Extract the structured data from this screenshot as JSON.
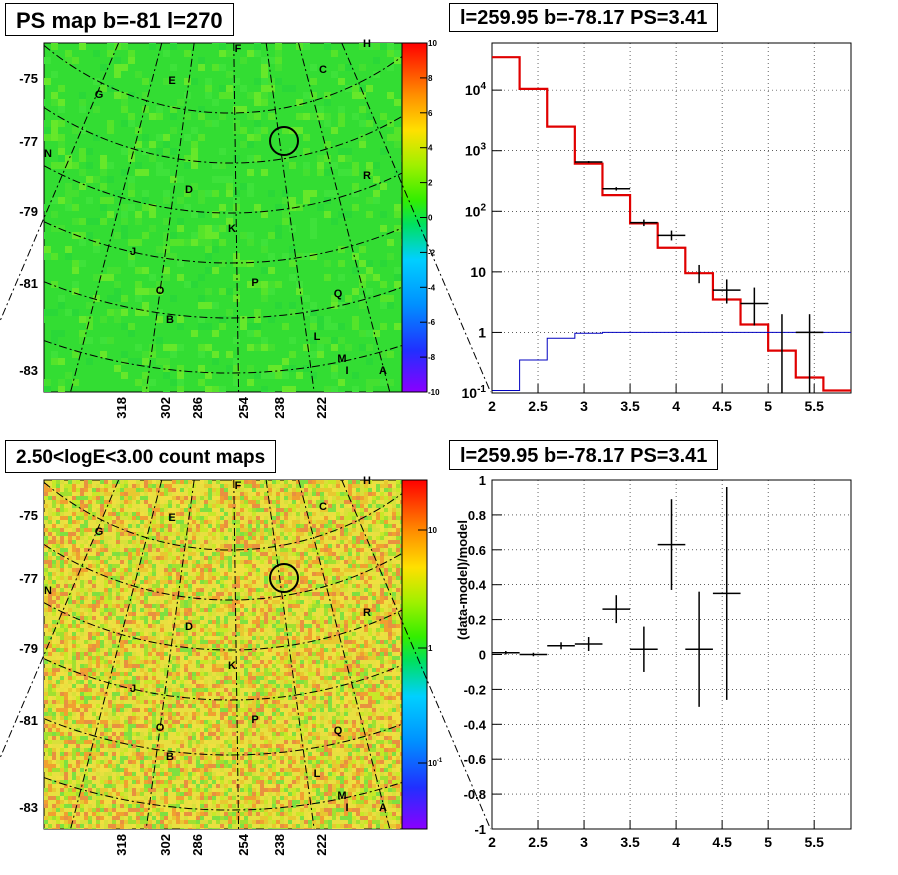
{
  "titles": {
    "ps_map": "PS map b=-81 l=270",
    "spectrum": "l=259.95 b=-78.17 PS=3.41",
    "count_map": "2.50<logE<3.00 count maps",
    "residual": "l=259.95 b=-78.17 PS=3.41"
  },
  "chart_data": [
    {
      "type": "heatmap",
      "title": "PS map b=-81 l=270",
      "y_ticks": [
        "-75",
        "-77",
        "-79",
        "-81",
        "-83"
      ],
      "x_ticks": [
        "318",
        "302",
        "286",
        "254",
        "238",
        "222"
      ],
      "colorbar": {
        "min": -10,
        "max": 10,
        "ticks": [
          "10",
          "8",
          "6",
          "4",
          "2",
          "0",
          "-2",
          "-4",
          "-6",
          "-8",
          "-10"
        ]
      },
      "region_labels": [
        "F",
        "H",
        "C",
        "G",
        "E",
        "N",
        "R",
        "D",
        "K",
        "J",
        "P",
        "O",
        "Q",
        "B",
        "L",
        "M",
        "I",
        "A"
      ],
      "grid": true
    },
    {
      "type": "line",
      "title": "l=259.95 b=-78.17 PS=3.41",
      "xlim": [
        2,
        5.9
      ],
      "ylim": [
        0.1,
        60000
      ],
      "ylog": true,
      "x_ticks": [
        "2",
        "2.5",
        "3",
        "3.5",
        "4",
        "4.5",
        "5",
        "5.5"
      ],
      "y_ticks": [
        "10^4",
        "10^3",
        "10^2",
        "10",
        "1",
        "10^-1"
      ],
      "grid": true,
      "bin_edges": [
        2.0,
        2.3,
        2.6,
        2.9,
        3.2,
        3.5,
        3.8,
        4.1,
        4.4,
        4.7,
        5.0,
        5.3,
        5.6,
        5.9
      ],
      "series": [
        {
          "color": "#e00000",
          "values": [
            35000,
            10500,
            2500,
            610,
            185,
            63,
            25,
            9.5,
            3.5,
            1.35,
            0.5,
            0.18,
            0.11
          ]
        },
        {
          "color": "#0000c0",
          "values": [
            0.11,
            0.35,
            0.8,
            0.97,
            1.0,
            1.0,
            1.0,
            1.0,
            1.0,
            1.0,
            1.0,
            1.0,
            1.0
          ]
        }
      ],
      "points": [
        {
          "x": 3.05,
          "xerr": 0.15,
          "y": 650,
          "yerr_lo": 625,
          "yerr_hi": 675
        },
        {
          "x": 3.35,
          "xerr": 0.15,
          "y": 235,
          "yerr_lo": 220,
          "yerr_hi": 250
        },
        {
          "x": 3.65,
          "xerr": 0.15,
          "y": 65,
          "yerr_lo": 57,
          "yerr_hi": 73
        },
        {
          "x": 3.95,
          "xerr": 0.15,
          "y": 40,
          "yerr_lo": 33,
          "yerr_hi": 48
        },
        {
          "x": 4.25,
          "xerr": 0.0,
          "y": 9.5,
          "yerr_lo": 6.5,
          "yerr_hi": 13
        },
        {
          "x": 4.55,
          "xerr": 0.15,
          "y": 5,
          "yerr_lo": 3,
          "yerr_hi": 7.5
        },
        {
          "x": 4.85,
          "xerr": 0.15,
          "y": 3,
          "yerr_lo": 1.3,
          "yerr_hi": 5.5
        },
        {
          "x": 5.15,
          "xerr": 0.0,
          "y": 1,
          "yerr_lo": 0.1,
          "yerr_hi": 2
        },
        {
          "x": 5.45,
          "xerr": 0.15,
          "y": 1,
          "yerr_lo": 0.1,
          "yerr_hi": 2
        }
      ]
    },
    {
      "type": "heatmap",
      "title": "2.50<logE<3.00 count maps",
      "y_ticks": [
        "-75",
        "-77",
        "-79",
        "-81",
        "-83"
      ],
      "x_ticks": [
        "318",
        "302",
        "286",
        "254",
        "238",
        "222"
      ],
      "colorbar": {
        "log": true,
        "ticks": [
          "10",
          "1",
          "10^-1"
        ]
      },
      "region_labels": [
        "F",
        "H",
        "C",
        "G",
        "E",
        "N",
        "R",
        "D",
        "K",
        "J",
        "P",
        "O",
        "Q",
        "B",
        "L",
        "M",
        "I",
        "A"
      ],
      "grid": true
    },
    {
      "type": "scatter",
      "title": "l=259.95 b=-78.17 PS=3.41",
      "ylabel": "(data-model)/model",
      "xlim": [
        2,
        5.9
      ],
      "ylim": [
        -1,
        1
      ],
      "x_ticks": [
        "2",
        "2.5",
        "3",
        "3.5",
        "4",
        "4.5",
        "5",
        "5.5"
      ],
      "y_ticks": [
        "1",
        "0.8",
        "0.6",
        "0.4",
        "0.2",
        "0",
        "-0.2",
        "-0.4",
        "-0.6",
        "-0.8",
        "-1"
      ],
      "grid": true,
      "points": [
        {
          "x": 2.15,
          "xerr": 0.15,
          "y": 0.01,
          "yerr": 0.01
        },
        {
          "x": 2.45,
          "xerr": 0.15,
          "y": 0.0,
          "yerr": 0.01
        },
        {
          "x": 2.75,
          "xerr": 0.15,
          "y": 0.05,
          "yerr": 0.02
        },
        {
          "x": 3.05,
          "xerr": 0.15,
          "y": 0.06,
          "yerr": 0.04
        },
        {
          "x": 3.35,
          "xerr": 0.15,
          "y": 0.26,
          "yerr": 0.08
        },
        {
          "x": 3.65,
          "xerr": 0.15,
          "y": 0.03,
          "yerr": 0.13
        },
        {
          "x": 3.95,
          "xerr": 0.15,
          "y": 0.63,
          "yerr": 0.26
        },
        {
          "x": 4.25,
          "xerr": 0.15,
          "y": 0.03,
          "yerr": 0.33
        },
        {
          "x": 4.55,
          "xerr": 0.15,
          "y": 0.35,
          "yerr": 0.61
        }
      ]
    }
  ]
}
